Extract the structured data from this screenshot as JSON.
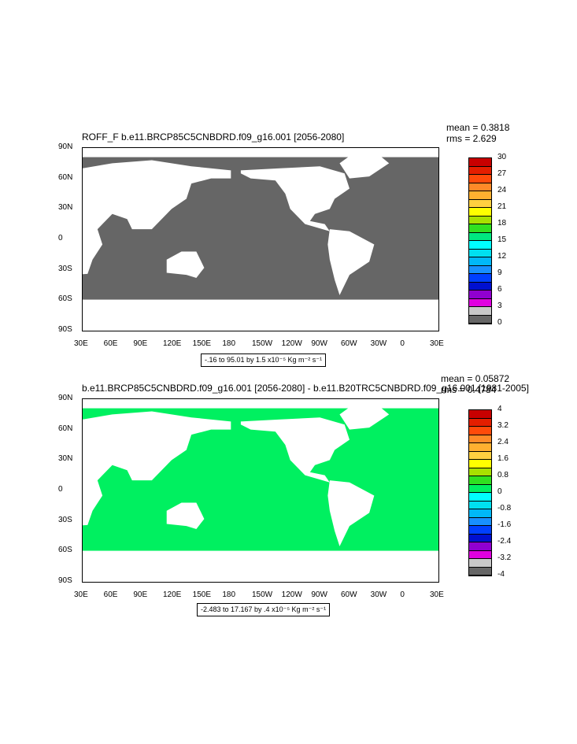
{
  "chart_data": [
    {
      "type": "heatmap",
      "title": "ROFF_F b.e11.BRCP85C5CNBDRD.f09_g16.001 [2056-2080]",
      "stats": {
        "mean": "mean = 0.3818",
        "rms": "rms = 2.629"
      },
      "x_ticks": [
        "30E",
        "60E",
        "90E",
        "120E",
        "150E",
        "180",
        "150W",
        "120W",
        "90W",
        "60W",
        "30W",
        "0",
        "30E"
      ],
      "y_ticks": [
        "90N",
        "60N",
        "30N",
        "0",
        "30S",
        "60S",
        "90S"
      ],
      "colorbar": {
        "labels": [
          "30",
          "27",
          "24",
          "21",
          "18",
          "15",
          "12",
          "9",
          "6",
          "3",
          "0"
        ],
        "colors": [
          "#c80000",
          "#e41e00",
          "#ff4a0a",
          "#ff8a28",
          "#ffb030",
          "#ffd040",
          "#ffff00",
          "#a8e000",
          "#30e020",
          "#00e880",
          "#00ffff",
          "#00e0f0",
          "#00b8f8",
          "#1890ff",
          "#0040ff",
          "#0010d0",
          "#9000d0",
          "#e000e0",
          "#c8c8c8",
          "#666666"
        ],
        "range": [
          0,
          30
        ]
      },
      "unit_text": "-.16 to 95.01 by 1.5 x10⁻⁵ Kg m⁻² s⁻¹",
      "ocean_color": "#666666",
      "land_color": "#ffffff"
    },
    {
      "type": "heatmap",
      "title": "b.e11.BRCP85C5CNBDRD.f09_g16.001 [2056-2080] - b.e11.B20TRC5CNBDRD.f09_g16.001 [1981-2005]",
      "stats": {
        "mean": "mean = 0.05872",
        "rms": "rms = 0.4784"
      },
      "x_ticks": [
        "30E",
        "60E",
        "90E",
        "120E",
        "150E",
        "180",
        "150W",
        "120W",
        "90W",
        "60W",
        "30W",
        "0",
        "30E"
      ],
      "y_ticks": [
        "90N",
        "60N",
        "30N",
        "0",
        "30S",
        "60S",
        "90S"
      ],
      "colorbar": {
        "labels": [
          "4",
          "3.2",
          "2.4",
          "1.6",
          "0.8",
          "0",
          "-0.8",
          "-1.6",
          "-2.4",
          "-3.2",
          "-4"
        ],
        "colors": [
          "#c80000",
          "#e41e00",
          "#ff4a0a",
          "#ff8a28",
          "#ffb030",
          "#ffd040",
          "#ffff00",
          "#a8e000",
          "#30e020",
          "#00f060",
          "#00ffff",
          "#00e0f0",
          "#00b8f8",
          "#1890ff",
          "#0040ff",
          "#0010d0",
          "#9000d0",
          "#e000e0",
          "#c8c8c8",
          "#666666"
        ],
        "range": [
          -4,
          4
        ]
      },
      "unit_text": "-2.483 to 17.167 by .4 x10⁻⁵ Kg m⁻² s⁻¹",
      "ocean_color": "#00f060",
      "land_color": "#ffffff"
    }
  ]
}
